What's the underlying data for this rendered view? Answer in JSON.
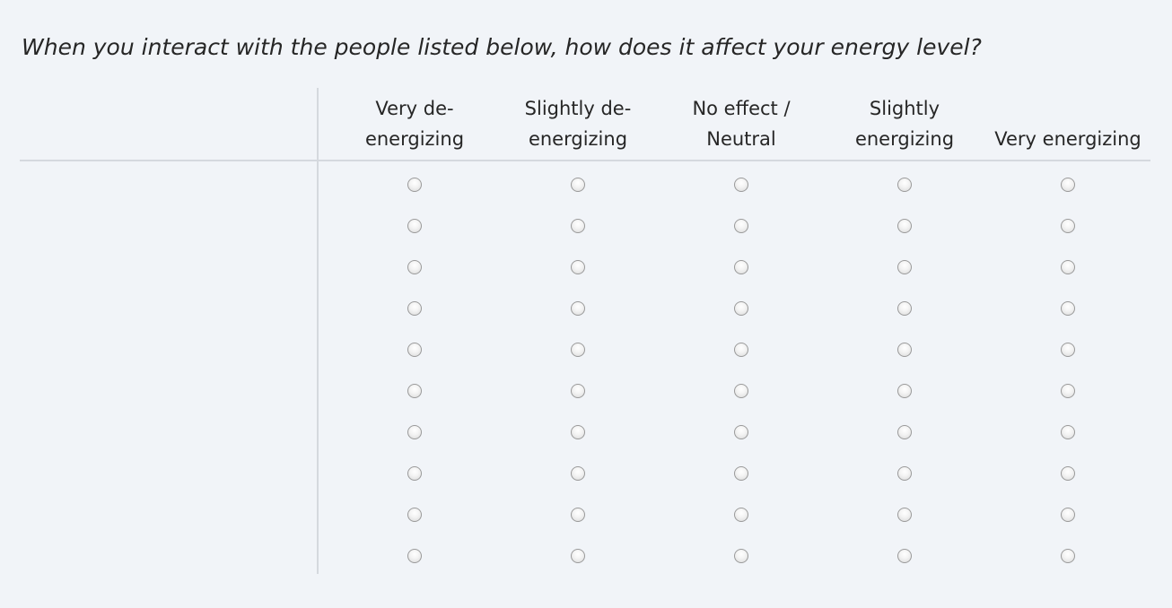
{
  "question": {
    "text": "When you interact with the people listed below, how does it affect your energy level?"
  },
  "matrix": {
    "columns": [
      {
        "label": "Very de-energizing"
      },
      {
        "label": "Slightly de-energizing"
      },
      {
        "label": "No effect / Neutral"
      },
      {
        "label": "Slightly energizing"
      },
      {
        "label": "Very energizing"
      }
    ],
    "rows": [
      {
        "label": ""
      },
      {
        "label": ""
      },
      {
        "label": ""
      },
      {
        "label": ""
      },
      {
        "label": ""
      },
      {
        "label": ""
      },
      {
        "label": ""
      },
      {
        "label": ""
      },
      {
        "label": ""
      },
      {
        "label": ""
      }
    ],
    "selected": [
      null,
      null,
      null,
      null,
      null,
      null,
      null,
      null,
      null,
      null
    ]
  }
}
